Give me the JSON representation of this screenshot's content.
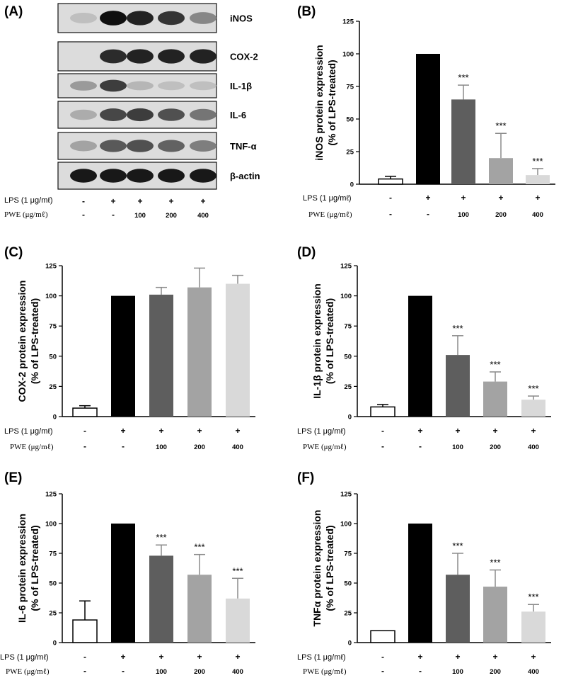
{
  "figure_labels": {
    "a": "(A)",
    "b": "(B)",
    "c": "(C)",
    "d": "(D)",
    "e": "(E)",
    "f": "(F)"
  },
  "blot": {
    "bands": [
      "iNOS",
      "COX-2",
      "IL-1β",
      "IL-6",
      "TNF-α",
      "β-actin"
    ],
    "lps_label": "LPS (1 μg/mℓ)",
    "pwe_label": "PWE (μg/mℓ)",
    "lps_row": [
      "-",
      "+",
      "+",
      "+",
      "+"
    ],
    "pwe_row": [
      "-",
      "-",
      "100",
      "200",
      "400"
    ]
  },
  "colors": [
    "#ffffff",
    "#000000",
    "#5e5e5e",
    "#a3a3a3",
    "#d9d9d9"
  ],
  "chart_data": [
    {
      "panel": "B",
      "type": "bar",
      "ylabel": "iNOS protein expression",
      "ylabel2": "(% of LPS-treated)",
      "ylim": [
        0,
        125
      ],
      "yticks": [
        "0",
        "25",
        "50",
        "75",
        "100",
        "125"
      ],
      "lps_label": "LPS (1 μg/mℓ)",
      "pwe_label": "PWE (μg/mℓ)",
      "lps": [
        "-",
        "+",
        "+",
        "+",
        "+"
      ],
      "pwe": [
        "-",
        "-",
        "100",
        "200",
        "400"
      ],
      "values": [
        4,
        100,
        65,
        20,
        7
      ],
      "errors": [
        2,
        0,
        11,
        19,
        5
      ],
      "significance": [
        "",
        "",
        "***",
        "***",
        "***"
      ]
    },
    {
      "panel": "C",
      "type": "bar",
      "ylabel": "COX-2 protein expression",
      "ylabel2": "(% of LPS-treated)",
      "ylim": [
        0,
        125
      ],
      "yticks": [
        "0",
        "25",
        "50",
        "75",
        "100",
        "125"
      ],
      "lps_label": "LPS (1 μg/mℓ)",
      "pwe_label": "PWE (μg/mℓ)",
      "lps": [
        "-",
        "+",
        "+",
        "+",
        "+"
      ],
      "pwe": [
        "-",
        "-",
        "100",
        "200",
        "400"
      ],
      "values": [
        7,
        100,
        101,
        107,
        110
      ],
      "errors": [
        2,
        0,
        6,
        16,
        7
      ],
      "significance": [
        "",
        "",
        "",
        "",
        ""
      ]
    },
    {
      "panel": "D",
      "type": "bar",
      "ylabel": "IL-1β protein expression",
      "ylabel2": "(% of LPS-treated)",
      "ylim": [
        0,
        125
      ],
      "yticks": [
        "0",
        "25",
        "50",
        "75",
        "100",
        "125"
      ],
      "lps_label": "LPS (1 μg/mℓ)",
      "pwe_label": "PWE (μg/mℓ)",
      "lps": [
        "-",
        "+",
        "+",
        "+",
        "+"
      ],
      "pwe": [
        "-",
        "-",
        "100",
        "200",
        "400"
      ],
      "values": [
        8,
        100,
        51,
        29,
        14
      ],
      "errors": [
        2,
        0,
        16,
        8,
        3
      ],
      "significance": [
        "",
        "",
        "***",
        "***",
        "***"
      ]
    },
    {
      "panel": "E",
      "type": "bar",
      "ylabel": "IL-6 protein expression",
      "ylabel2": "(% of LPS-treated)",
      "ylim": [
        0,
        125
      ],
      "yticks": [
        "0",
        "25",
        "50",
        "75",
        "100",
        "125"
      ],
      "lps_label": "LPS (1 μg/mℓ)",
      "pwe_label": "PWE (μg/mℓ)",
      "lps": [
        "-",
        "+",
        "+",
        "+",
        "+"
      ],
      "pwe": [
        "-",
        "-",
        "100",
        "200",
        "400"
      ],
      "values": [
        19,
        100,
        73,
        57,
        37
      ],
      "errors": [
        16,
        0,
        9,
        17,
        17
      ],
      "significance": [
        "",
        "",
        "***",
        "***",
        "***"
      ]
    },
    {
      "panel": "F",
      "type": "bar",
      "ylabel": "TNFα protein expression",
      "ylabel2": "(% of LPS-treated)",
      "ylim": [
        0,
        125
      ],
      "yticks": [
        "0",
        "25",
        "50",
        "75",
        "100",
        "125"
      ],
      "lps_label": "LPS (1 μg/mℓ)",
      "pwe_label": "PWE (μg/mℓ)",
      "lps": [
        "-",
        "+",
        "+",
        "+",
        "+"
      ],
      "pwe": [
        "-",
        "-",
        "100",
        "200",
        "400"
      ],
      "values": [
        10,
        100,
        57,
        47,
        26
      ],
      "errors": [
        0,
        0,
        18,
        14,
        6
      ],
      "significance": [
        "",
        "",
        "***",
        "***",
        "***"
      ]
    }
  ]
}
